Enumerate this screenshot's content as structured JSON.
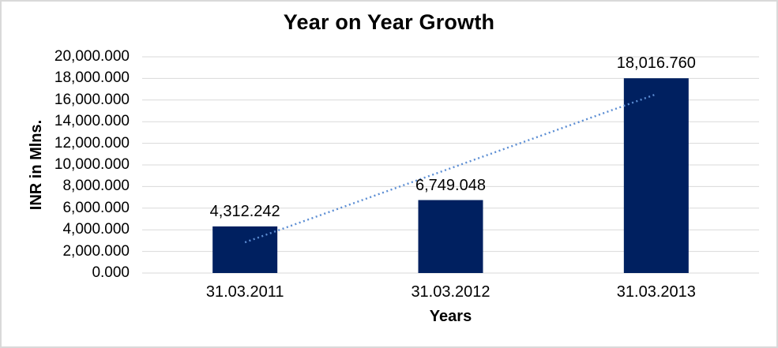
{
  "frame": {
    "border_color": "#D9D9D9",
    "background_color": "#FFFFFF"
  },
  "chart_data": {
    "type": "bar",
    "title": "Year on Year Growth",
    "xlabel": "Years",
    "ylabel": "INR in Mlns.",
    "categories": [
      "31.03.2011",
      "31.03.2012",
      "31.03.2013"
    ],
    "series": [
      {
        "name": "INR in Mlns.",
        "values": [
          4312.242,
          6749.048,
          18016.76
        ]
      }
    ],
    "data_labels": [
      "4,312.242",
      "6,749.048",
      "18,016.760"
    ],
    "ylim": [
      0,
      20000
    ],
    "y_tick_step": 2000,
    "y_tick_labels": [
      "0.000",
      "2,000.000",
      "4,000.000",
      "6,000.000",
      "8,000.000",
      "10,000.000",
      "12,000.000",
      "14,000.000",
      "16,000.000",
      "18,000.000",
      "20,000.000"
    ],
    "grid": "horizontal",
    "legend": "none",
    "bar_color": "#002060",
    "gridline_color": "#D9D9D9",
    "text_color": "#000000",
    "trendline": {
      "shape": "linear",
      "style": "dotted",
      "color": "#5B8DD3",
      "start_value": 2840.4,
      "end_value": 16544.9
    }
  }
}
